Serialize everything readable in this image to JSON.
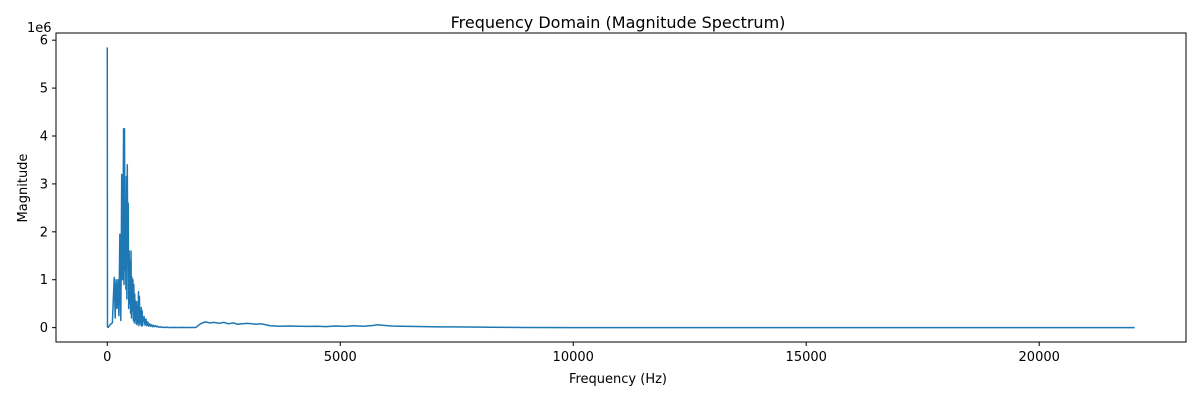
{
  "chart_data": {
    "type": "line",
    "title": "Frequency Domain (Magnitude Spectrum)",
    "xlabel": "Frequency (Hz)",
    "ylabel": "Magnitude",
    "y_multiplier_label": "1e6",
    "xlim": [
      -1100,
      23150
    ],
    "ylim": [
      -300000,
      6150000
    ],
    "x_ticks": [
      0,
      5000,
      10000,
      15000,
      20000
    ],
    "y_ticks": [
      0,
      1000000,
      2000000,
      3000000,
      4000000,
      5000000,
      6000000
    ],
    "y_tick_labels": [
      "0",
      "1",
      "2",
      "3",
      "4",
      "5",
      "6"
    ],
    "grid": false,
    "series": [
      {
        "color": "#1f77b4",
        "x": [
          0,
          5,
          10,
          20,
          60,
          110,
          130,
          150,
          170,
          190,
          210,
          230,
          250,
          270,
          290,
          300,
          310,
          330,
          350,
          360,
          370,
          380,
          390,
          400,
          410,
          420,
          430,
          440,
          450,
          460,
          470,
          480,
          490,
          500,
          510,
          520,
          530,
          540,
          550,
          560,
          570,
          580,
          590,
          600,
          610,
          620,
          630,
          640,
          650,
          660,
          670,
          680,
          690,
          700,
          710,
          720,
          730,
          740,
          750,
          760,
          770,
          790,
          810,
          830,
          850,
          870,
          890,
          910,
          930,
          950,
          970,
          990,
          1010,
          1030,
          1050,
          1070,
          1090,
          1110,
          1130,
          1150,
          1170,
          1190,
          1210,
          1230,
          1260,
          1300,
          1340,
          1380,
          1420,
          1460,
          1500,
          1550,
          1600,
          1700,
          1800,
          1900,
          2000,
          2100,
          2200,
          2300,
          2400,
          2500,
          2600,
          2700,
          2800,
          2900,
          3000,
          3100,
          3200,
          3300,
          3400,
          3500,
          3700,
          3900,
          4100,
          4300,
          4500,
          4700,
          4900,
          5100,
          5300,
          5500,
          5700,
          5800,
          5900,
          6100,
          6300,
          6500,
          6800,
          7100,
          7400,
          7700,
          8000,
          8200,
          9000,
          10000,
          12000,
          14000,
          16000,
          18000,
          20000,
          22050
        ],
        "y": [
          5850000,
          20000,
          10000,
          5000,
          60000,
          100000,
          600000,
          1050000,
          200000,
          1000000,
          400000,
          1000000,
          250000,
          1950000,
          150000,
          1400000,
          3200000,
          1000000,
          4150000,
          900000,
          4150000,
          1200000,
          2400000,
          800000,
          3150000,
          600000,
          3400000,
          1500000,
          2600000,
          400000,
          1600000,
          500000,
          1400000,
          300000,
          1600000,
          200000,
          1050000,
          350000,
          1000000,
          150000,
          900000,
          100000,
          700000,
          150000,
          550000,
          80000,
          540000,
          60000,
          300000,
          100000,
          750000,
          40000,
          650000,
          100000,
          300000,
          60000,
          420000,
          30000,
          350000,
          50000,
          150000,
          230000,
          50000,
          180000,
          40000,
          120000,
          30000,
          80000,
          30000,
          60000,
          20000,
          50000,
          20000,
          40000,
          20000,
          30000,
          10000,
          20000,
          10000,
          15000,
          5000,
          10000,
          3000,
          5000,
          8000,
          5000,
          3000,
          4000,
          3000,
          5000,
          4000,
          3000,
          5000,
          4000,
          3000,
          4000,
          80000,
          120000,
          100000,
          110000,
          90000,
          110000,
          80000,
          100000,
          70000,
          80000,
          90000,
          80000,
          70000,
          80000,
          60000,
          40000,
          30000,
          35000,
          30000,
          25000,
          30000,
          20000,
          35000,
          25000,
          40000,
          30000,
          45000,
          60000,
          50000,
          35000,
          30000,
          25000,
          20000,
          15000,
          15000,
          12000,
          10000,
          8000,
          3000,
          1000,
          500,
          500,
          500,
          500,
          500,
          500
        ]
      }
    ]
  }
}
